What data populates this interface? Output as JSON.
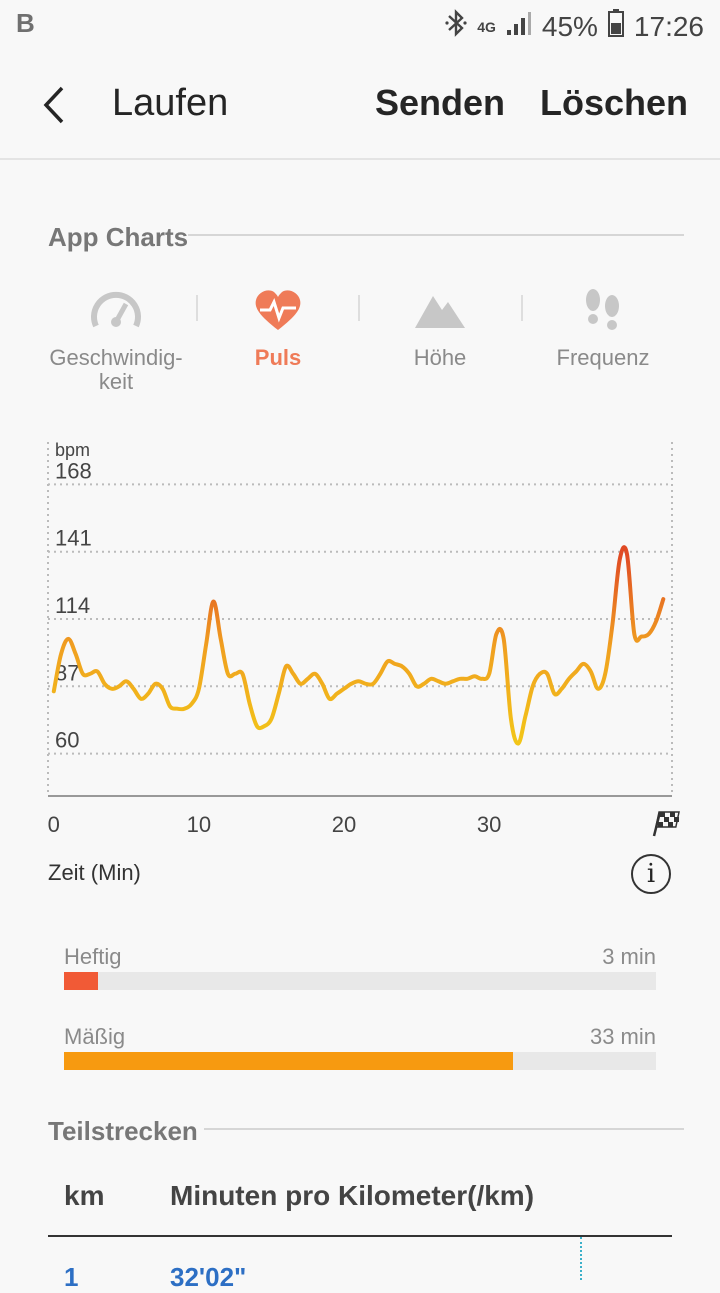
{
  "status_bar": {
    "left_badge": "B",
    "network": "4G",
    "battery": "45%",
    "time": "17:26"
  },
  "app_bar": {
    "title": "Laufen",
    "send_label": "Senden",
    "delete_label": "Löschen"
  },
  "app_charts": {
    "heading": "App Charts",
    "tabs": [
      {
        "label": "Geschwindig-\nkeit",
        "icon": "speedometer-icon",
        "active": false
      },
      {
        "label": "Puls",
        "icon": "heart-pulse-icon",
        "active": true
      },
      {
        "label": "Höhe",
        "icon": "mountain-icon",
        "active": false
      },
      {
        "label": "Frequenz",
        "icon": "footsteps-icon",
        "active": false
      }
    ]
  },
  "chart_data": {
    "type": "line",
    "ylabel": "bpm",
    "xlabel": "Zeit (Min)",
    "y_ticks": [
      60,
      87,
      114,
      141,
      168
    ],
    "x_ticks": [
      0,
      10,
      20,
      30
    ],
    "ylim": [
      43,
      185
    ],
    "xlim": [
      -0.4,
      42.6
    ],
    "grid": true,
    "end_marker": "finish-flag-icon",
    "line_colors": {
      "low": "#f2c518",
      "mid": "#f0a020",
      "high": "#e04a24"
    },
    "series": [
      {
        "x": [
          0,
          0.5,
          1,
          1.5,
          2,
          2.5,
          3,
          3.5,
          4,
          4.5,
          5,
          5.5,
          6,
          6.5,
          7,
          7.5,
          8,
          8.5,
          9,
          9.5,
          10,
          10.5,
          11,
          11.5,
          12,
          12.5,
          13,
          13.5,
          14,
          14.5,
          15,
          15.5,
          16,
          16.5,
          17,
          17.5,
          18,
          18.5,
          19,
          19.5,
          20,
          20.5,
          21,
          21.5,
          22,
          22.5,
          23,
          23.5,
          24,
          24.5,
          25,
          25.5,
          26,
          26.5,
          27,
          27.5,
          28,
          28.5,
          29,
          29.5,
          30,
          30.5,
          31,
          31.5,
          32,
          32.5,
          33,
          33.5,
          34,
          34.5,
          35,
          35.5,
          36,
          36.5,
          37,
          37.5,
          38,
          38.5,
          39,
          39.5,
          40,
          40.5,
          41,
          41.5,
          42
        ],
        "y": [
          85,
          100,
          106,
          100,
          92,
          92,
          93,
          88,
          86,
          87,
          89,
          86,
          82,
          84,
          88,
          86,
          79,
          78,
          78,
          80,
          86,
          104,
          121,
          106,
          92,
          92,
          92,
          80,
          71,
          71,
          74,
          84,
          95,
          92,
          88,
          90,
          92,
          88,
          82,
          84,
          86,
          88,
          89,
          88,
          88,
          92,
          97,
          96,
          95,
          92,
          87,
          88,
          90,
          89,
          88,
          89,
          90,
          90,
          91,
          90,
          92,
          108,
          106,
          74,
          64,
          75,
          87,
          92,
          92,
          84,
          86,
          90,
          93,
          96,
          93,
          86,
          92,
          112,
          138,
          140,
          108,
          107,
          108,
          113,
          122
        ]
      }
    ]
  },
  "zones": [
    {
      "label": "Heftig",
      "value": "3 min",
      "fraction": 0.058,
      "color": "#f15a36"
    },
    {
      "label": "Mäßig",
      "value": "33 min",
      "fraction": 0.758,
      "color": "#f79a10"
    }
  ],
  "splits": {
    "heading": "Teilstrecken",
    "col_km": "km",
    "col_pace": "Minuten pro Kilometer(/km)",
    "rows": [
      {
        "km": "1",
        "pace": "32'02\""
      }
    ]
  },
  "info_glyph": "i"
}
